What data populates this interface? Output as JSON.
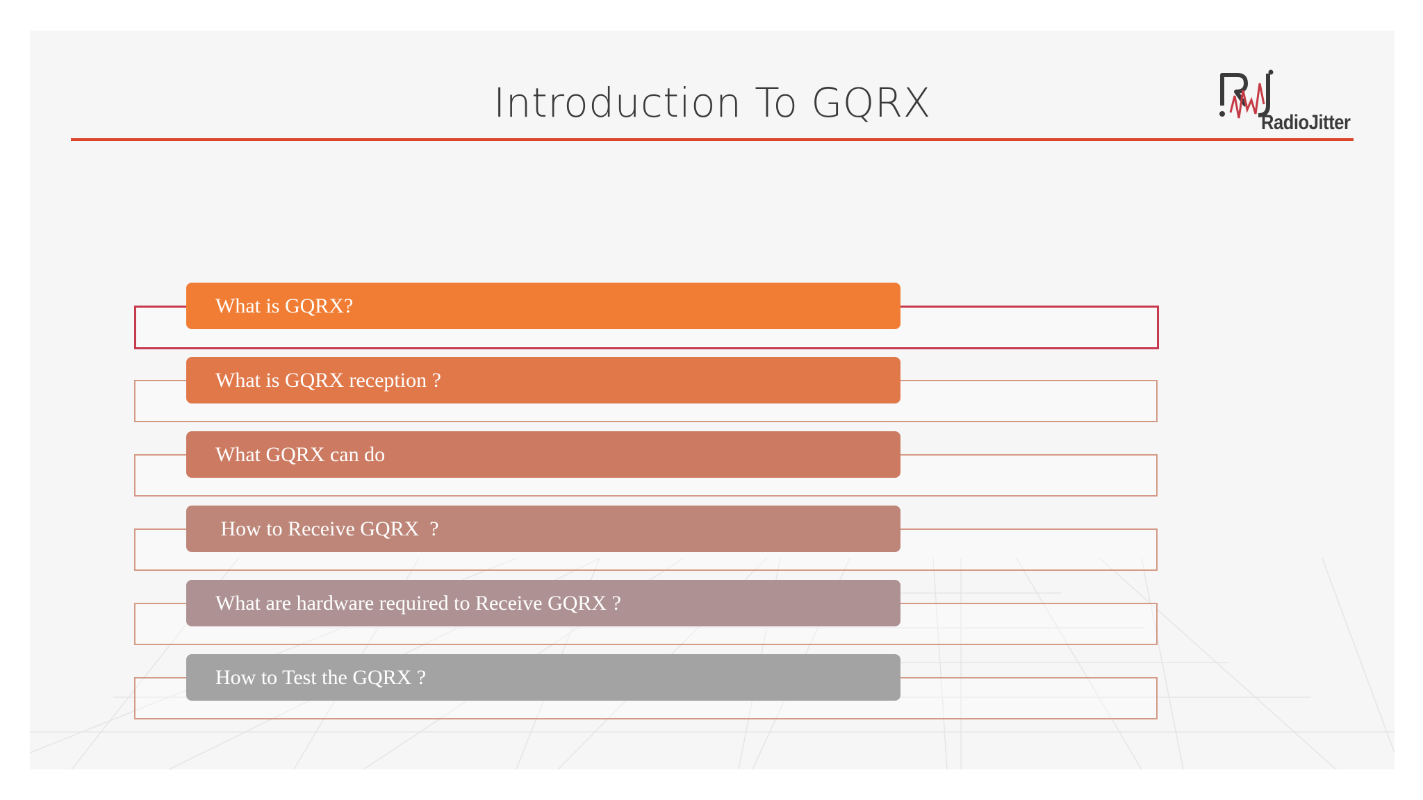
{
  "slide": {
    "title": "Introduction To GQRX",
    "accent_color": "#d9462c",
    "logo": {
      "text": "RadioJitter",
      "mark": "RJ"
    }
  },
  "items": [
    {
      "label": "What is GQRX?",
      "color": "#f07d33",
      "active": true
    },
    {
      "label": "What is GQRX reception ?",
      "color": "#e0784a",
      "active": false
    },
    {
      "label": "What GQRX can do",
      "color": "#cc7b62",
      "active": false
    },
    {
      "label": " How to Receive GQRX  ?",
      "color": "#bd8679",
      "active": false
    },
    {
      "label": "What are hardware required to Receive GQRX ?",
      "color": "#ae9293",
      "active": false
    },
    {
      "label": "How to Test the GQRX ?",
      "color": "#a3a3a3",
      "active": false
    }
  ]
}
